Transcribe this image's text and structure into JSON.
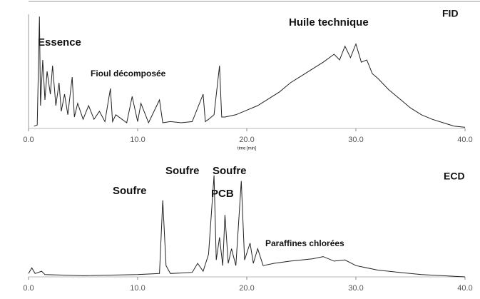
{
  "chart_data": [
    {
      "type": "line",
      "label": "FID",
      "x_label": "time [min]",
      "annotations": [
        "Essence",
        "Fioul décomposée",
        "Huile technique"
      ],
      "xlim": [
        0,
        40
      ],
      "ylim": [
        0,
        100
      ],
      "xticks": [
        {
          "value": 0,
          "label": "0.0"
        },
        {
          "value": 10,
          "label": "10.0"
        },
        {
          "value": 20,
          "label": "20.0"
        },
        {
          "value": 30,
          "label": "30.0"
        },
        {
          "value": 40,
          "label": "40.0"
        }
      ],
      "x": [
        0.5,
        0.8,
        1.0,
        1.1,
        1.3,
        1.5,
        1.7,
        2.0,
        2.2,
        2.5,
        2.8,
        3.0,
        3.3,
        3.6,
        4.0,
        4.2,
        4.5,
        5.0,
        5.5,
        6.0,
        6.5,
        7.0,
        7.5,
        7.7,
        8.0,
        9.0,
        9.5,
        10.0,
        10.3,
        11.0,
        12.0,
        12.3,
        13.0,
        14.0,
        15.0,
        16.0,
        16.2,
        16.5,
        17.0,
        17.5,
        17.7,
        18.0,
        19.0,
        20.0,
        21.0,
        22.0,
        23.0,
        24.0,
        25.0,
        26.0,
        27.0,
        28.0,
        28.5,
        29.0,
        29.5,
        30.0,
        30.5,
        31.0,
        31.5,
        32.0,
        33.0,
        34.0,
        35.0,
        36.0,
        37.0,
        38.0,
        39.0,
        40.0
      ],
      "series": [
        {
          "color": "#222222",
          "values": [
            2,
            3,
            98,
            20,
            60,
            25,
            50,
            30,
            55,
            20,
            40,
            15,
            30,
            12,
            45,
            10,
            22,
            8,
            20,
            8,
            15,
            6,
            35,
            6,
            12,
            5,
            28,
            6,
            22,
            5,
            25,
            5,
            6,
            5,
            6,
            30,
            6,
            8,
            12,
            55,
            10,
            10,
            12,
            16,
            20,
            26,
            32,
            40,
            46,
            52,
            58,
            65,
            60,
            72,
            62,
            74,
            58,
            60,
            48,
            44,
            34,
            26,
            18,
            12,
            8,
            5,
            2,
            1
          ]
        }
      ]
    },
    {
      "type": "line",
      "label": "ECD",
      "annotations": [
        "Soufre",
        "Soufre",
        "Soufre",
        "PCB",
        "Paraffines chlorées"
      ],
      "xlim": [
        0,
        40
      ],
      "ylim": [
        0,
        100
      ],
      "xticks": [
        {
          "value": 0,
          "label": "0.0"
        },
        {
          "value": 10,
          "label": "10.0"
        },
        {
          "value": 20,
          "label": "20.0"
        },
        {
          "value": 30,
          "label": "30.0"
        },
        {
          "value": 40,
          "label": "40.0"
        }
      ],
      "x": [
        0,
        0.3,
        0.6,
        1.2,
        1.5,
        5,
        10,
        12.0,
        12.3,
        12.6,
        13,
        15,
        15.5,
        16.0,
        16.5,
        17.0,
        17.2,
        17.5,
        17.8,
        18.0,
        18.3,
        18.6,
        19.0,
        19.5,
        19.8,
        20.3,
        20.6,
        21.0,
        21.5,
        22.5,
        24,
        26,
        27,
        28,
        29,
        30,
        32,
        34,
        36,
        38,
        40
      ],
      "series": [
        {
          "color": "#222222",
          "values": [
            3,
            8,
            3,
            5,
            2,
            1,
            2,
            3,
            68,
            10,
            3,
            4,
            12,
            5,
            20,
            90,
            15,
            35,
            10,
            55,
            12,
            25,
            10,
            85,
            15,
            30,
            12,
            25,
            10,
            12,
            14,
            16,
            18,
            14,
            15,
            10,
            6,
            4,
            2,
            1,
            0
          ]
        }
      ]
    }
  ]
}
